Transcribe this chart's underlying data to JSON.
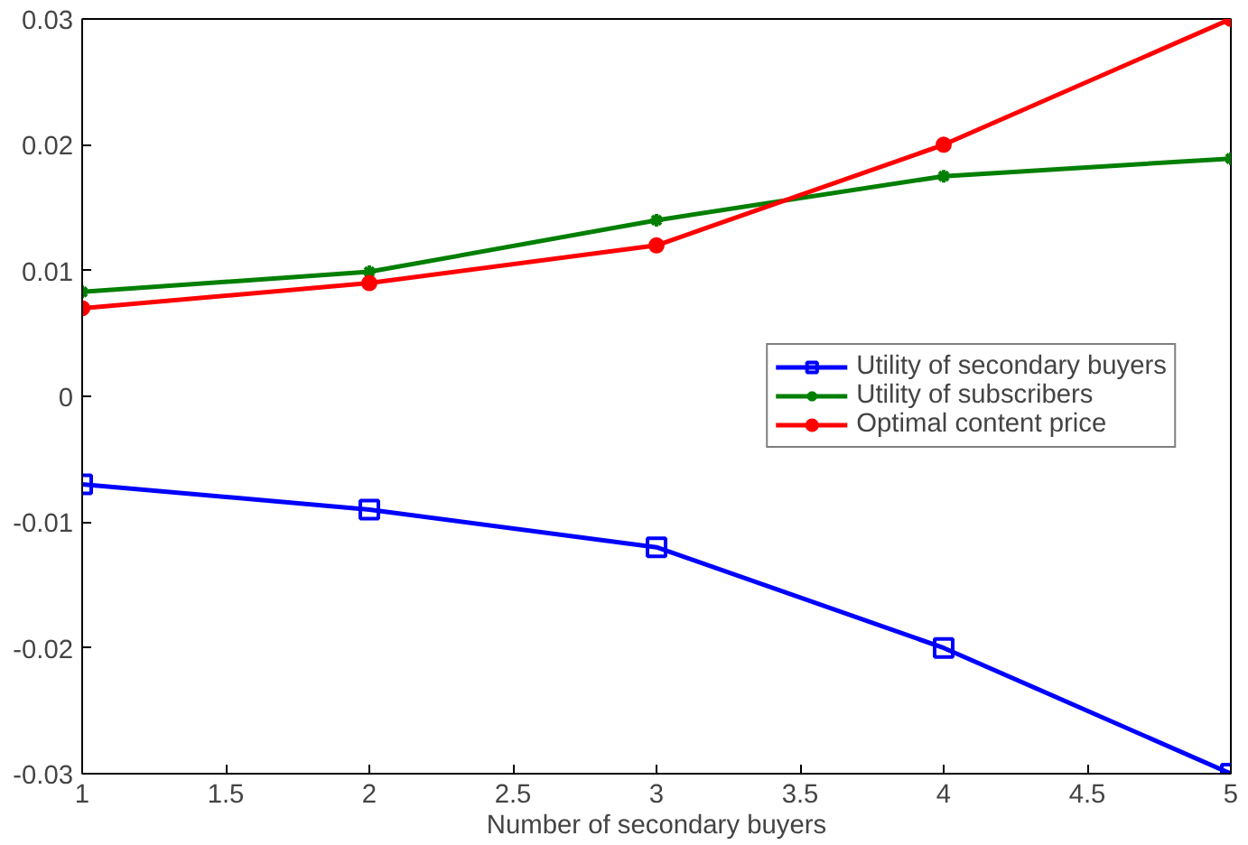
{
  "chart_data": {
    "type": "line",
    "xlabel": "Number of secondary buyers",
    "x": [
      1,
      2,
      3,
      4,
      5
    ],
    "series": [
      {
        "name": "Utility of secondary buyers",
        "color": "#0000ff",
        "values": [
          -0.007,
          -0.009,
          -0.012,
          -0.02,
          -0.03
        ],
        "marker": "square"
      },
      {
        "name": "Utility of subscribers",
        "color": "#007f00",
        "values": [
          0.0083,
          0.0099,
          0.014,
          0.0175,
          0.0189
        ],
        "marker": "cross"
      },
      {
        "name": "Optimal content price",
        "color": "#ff0000",
        "values": [
          0.007,
          0.009,
          0.012,
          0.02,
          0.03
        ],
        "marker": "circle"
      }
    ],
    "xlim": [
      1,
      5
    ],
    "ylim": [
      -0.03,
      0.03
    ],
    "xticks": [
      1,
      1.5,
      2,
      2.5,
      3,
      3.5,
      4,
      4.5,
      5
    ],
    "yticks": [
      -0.03,
      -0.02,
      -0.01,
      0,
      0.01,
      0.02,
      0.03
    ],
    "grid": false,
    "legend": "right",
    "line_style": "solid"
  }
}
